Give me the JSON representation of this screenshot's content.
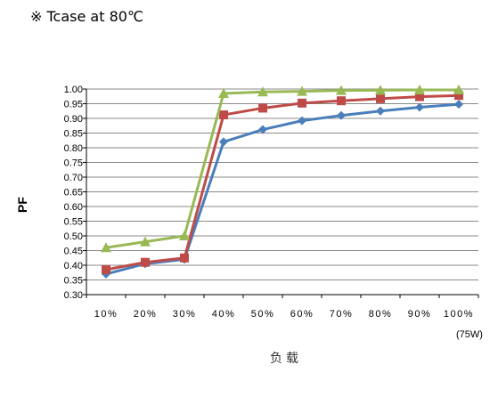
{
  "heading": "※ Tcase at 80℃",
  "chart_data": {
    "type": "line",
    "title": "※ Tcase at 80℃",
    "xlabel": "负载",
    "ylabel": "PF",
    "x_unit_note": "(75W)",
    "categories": [
      "10%",
      "20%",
      "30%",
      "40%",
      "50%",
      "60%",
      "70%",
      "80%",
      "90%",
      "100%"
    ],
    "ylim": [
      0.3,
      1.0
    ],
    "yticks": [
      "0.30",
      "0.35",
      "0.40",
      "0.45",
      "0.50",
      "0.55",
      "0.60",
      "0.65",
      "0.70",
      "0.75",
      "0.80",
      "0.85",
      "0.90",
      "0.95",
      "1.00"
    ],
    "grid": true,
    "series": [
      {
        "marker": "diamond",
        "color": "#4a7ebb",
        "values": [
          0.37,
          0.405,
          0.42,
          0.82,
          0.862,
          0.892,
          0.91,
          0.925,
          0.938,
          0.948
        ]
      },
      {
        "marker": "square",
        "color": "#be4b48",
        "values": [
          0.385,
          0.41,
          0.425,
          0.912,
          0.935,
          0.952,
          0.96,
          0.967,
          0.974,
          0.978
        ]
      },
      {
        "marker": "triangle",
        "color": "#98b954",
        "values": [
          0.46,
          0.48,
          0.5,
          0.985,
          0.99,
          0.992,
          0.995,
          0.996,
          0.997,
          0.997
        ]
      }
    ]
  }
}
